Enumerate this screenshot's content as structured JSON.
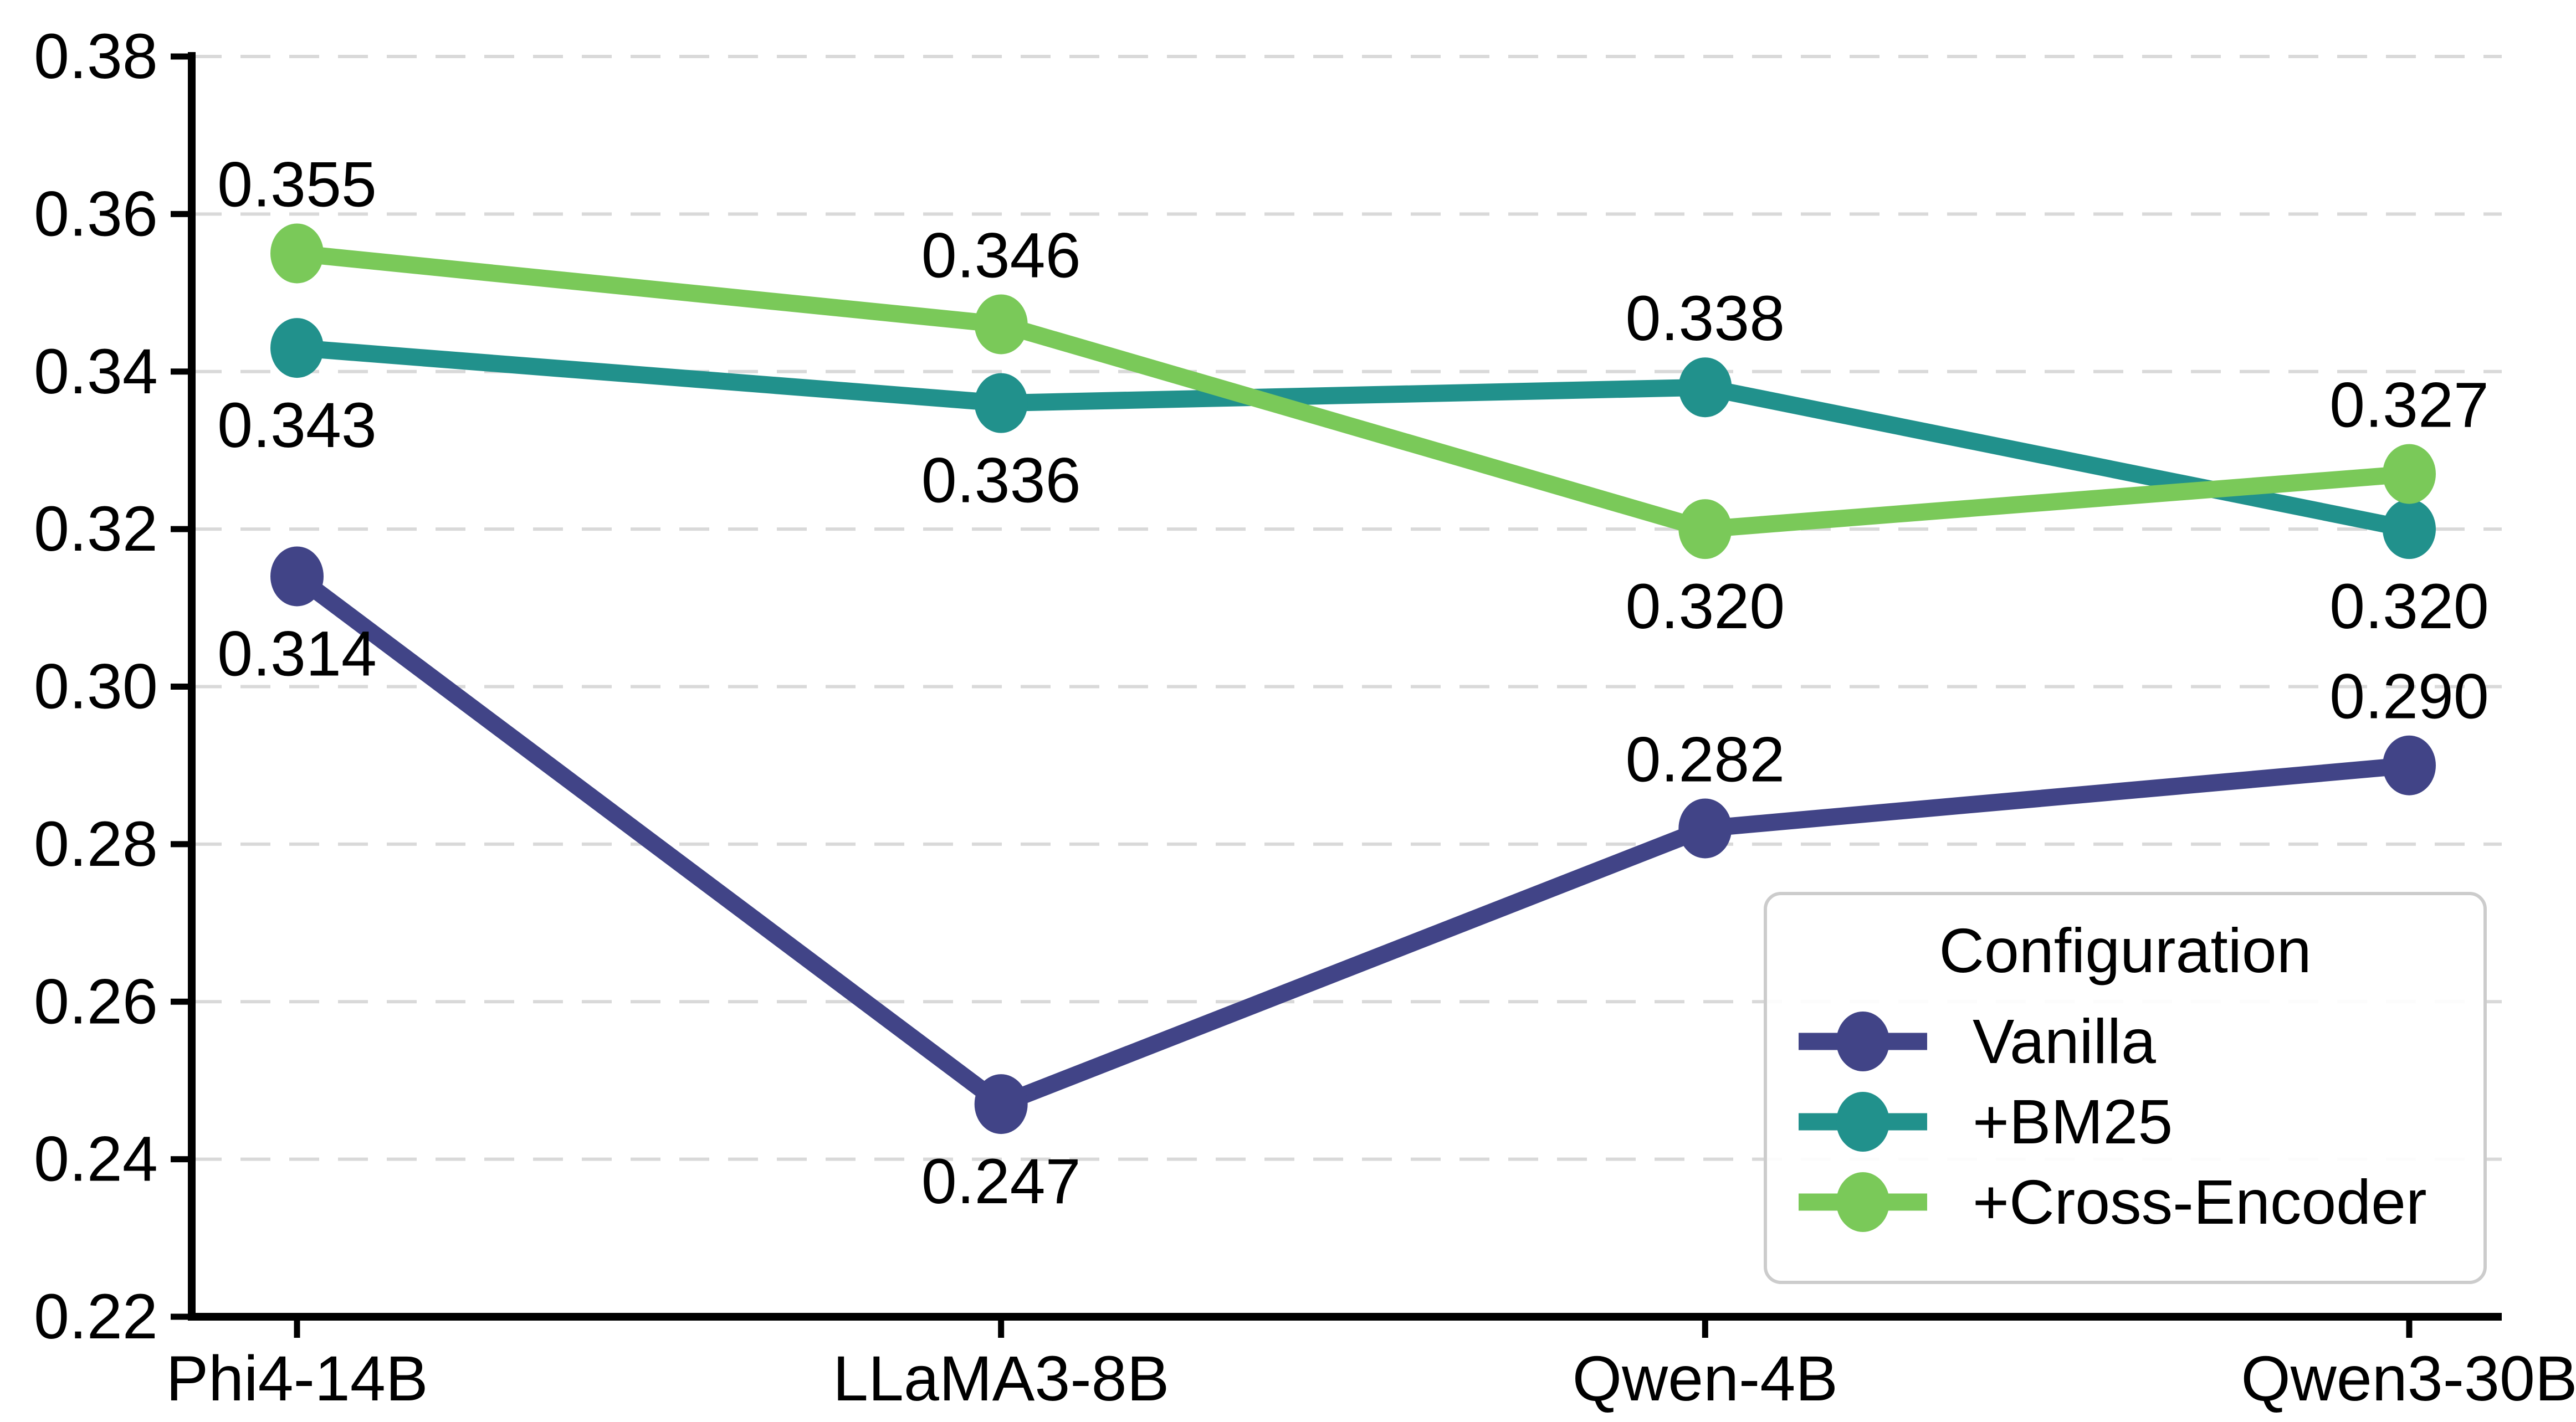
{
  "chart_data": {
    "type": "line",
    "title": "",
    "xlabel": "",
    "ylabel": "",
    "categories": [
      "Phi4-14B",
      "LLaMA3-8B",
      "Qwen-4B",
      "Qwen3-30B"
    ],
    "series": [
      {
        "name": "Vanilla",
        "color": "#414487",
        "values": [
          0.314,
          0.247,
          0.282,
          0.29
        ],
        "point_labels": [
          "0.314",
          "0.247",
          "0.282",
          "0.290"
        ],
        "label_side": [
          "below",
          "below",
          "above",
          "above"
        ]
      },
      {
        "name": "+BM25",
        "color": "#21918c",
        "values": [
          0.343,
          0.336,
          0.338,
          0.32
        ],
        "point_labels": [
          "0.343",
          "0.336",
          "0.338",
          "0.320"
        ],
        "label_side": [
          "below",
          "below",
          "above",
          "below"
        ]
      },
      {
        "name": "+Cross-Encoder",
        "color": "#7ac959",
        "values": [
          0.355,
          0.346,
          0.32,
          0.327
        ],
        "point_labels": [
          "0.355",
          "0.346",
          "0.320",
          "0.327"
        ],
        "label_side": [
          "above",
          "above",
          "below",
          "above"
        ]
      }
    ],
    "ylim": [
      0.22,
      0.38
    ],
    "yticks": [
      "0.22",
      "0.24",
      "0.26",
      "0.28",
      "0.30",
      "0.32",
      "0.34",
      "0.36",
      "0.38"
    ],
    "grid": {
      "axis": "y",
      "style": "dashed",
      "color": "#d9d9d9"
    },
    "legend": {
      "title": "Configuration",
      "position": "lower right"
    },
    "axis_color": "#000000",
    "text_color": "#000000",
    "background": "#ffffff"
  }
}
